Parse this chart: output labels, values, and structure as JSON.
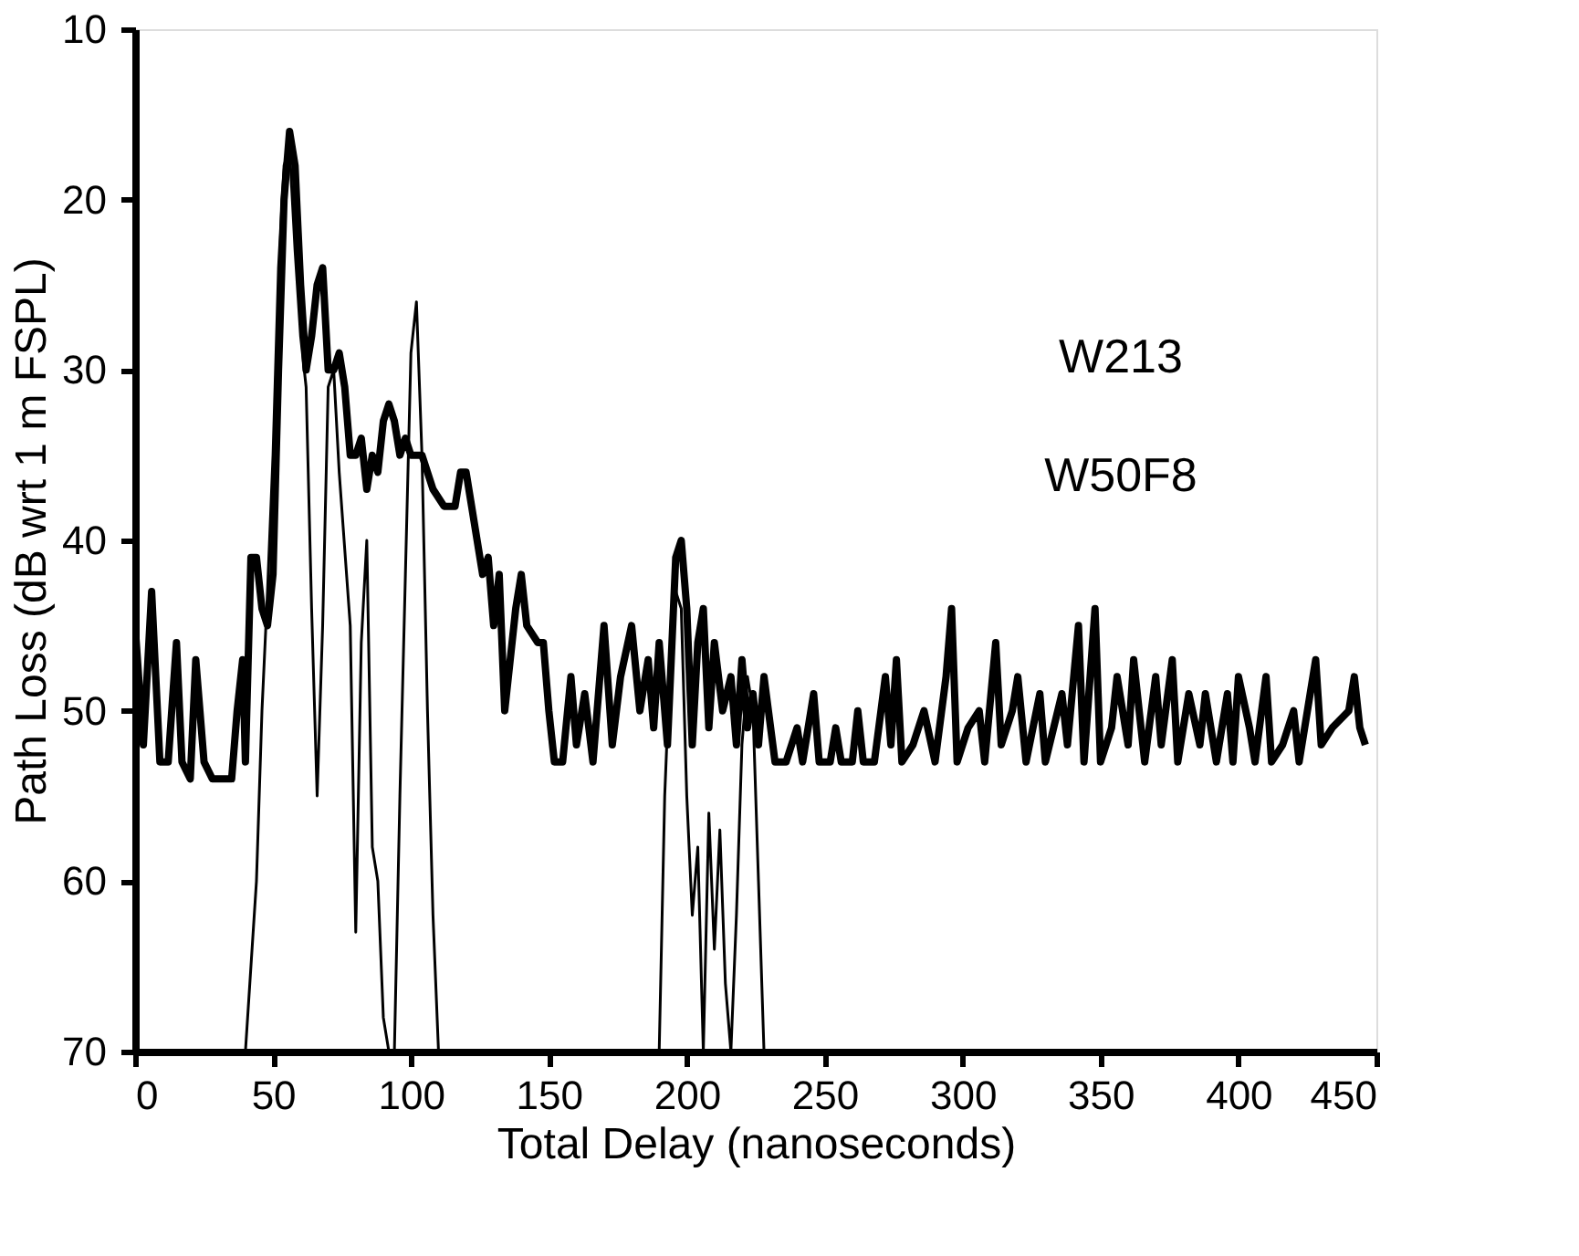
{
  "chart_data": {
    "type": "line",
    "xlabel": "Total Delay (nanoseconds)",
    "ylabel": "Path Loss (dB wrt 1 m FSPL)",
    "xlim": [
      0,
      450
    ],
    "xticks": [
      0,
      50,
      100,
      150,
      200,
      250,
      300,
      350,
      400,
      450
    ],
    "ylim": [
      70,
      10
    ],
    "yticks": [
      10,
      20,
      30,
      40,
      50,
      60,
      70
    ],
    "grid": false,
    "legend": false,
    "marker": "none",
    "line_style": "solid",
    "annotations": [
      "W213",
      "W50F8"
    ],
    "series": [
      {
        "color": "#000000",
        "x": [
          0,
          3,
          6,
          9,
          12,
          15,
          17,
          20,
          22,
          25,
          28,
          32,
          35,
          37,
          39,
          40,
          42,
          44,
          46,
          48,
          50,
          52,
          54,
          56,
          58,
          60,
          62,
          64,
          66,
          68,
          70,
          72,
          74,
          76,
          78,
          80,
          82,
          84,
          86,
          88,
          90,
          92,
          94,
          96,
          98,
          100,
          104,
          108,
          112,
          116,
          118,
          120,
          122,
          126,
          128,
          130,
          132,
          134,
          136,
          138,
          140,
          142,
          146,
          148,
          150,
          152,
          155,
          158,
          160,
          163,
          166,
          170,
          173,
          176,
          180,
          183,
          186,
          188,
          190,
          193,
          196,
          198,
          200,
          202,
          204,
          206,
          208,
          210,
          213,
          216,
          218,
          220,
          222,
          224,
          226,
          228,
          232,
          236,
          240,
          242,
          246,
          248,
          252,
          254,
          256,
          260,
          262,
          264,
          268,
          272,
          274,
          276,
          278,
          282,
          286,
          290,
          294,
          296,
          298,
          302,
          306,
          308,
          312,
          314,
          318,
          320,
          323,
          328,
          330,
          336,
          338,
          342,
          344,
          348,
          350,
          354,
          356,
          360,
          362,
          366,
          370,
          372,
          376,
          378,
          382,
          386,
          388,
          392,
          396,
          398,
          400,
          404,
          406,
          410,
          412,
          416,
          420,
          422,
          426,
          428,
          430,
          434,
          440,
          442,
          444,
          446
        ],
        "values": [
          45,
          52,
          43,
          53,
          53,
          46,
          53,
          54,
          47,
          53,
          54,
          54,
          54,
          50,
          47,
          53,
          41,
          41,
          44,
          45,
          42,
          30,
          20,
          16,
          18,
          25,
          30,
          28,
          25,
          24,
          30,
          30,
          29,
          31,
          35,
          35,
          34,
          37,
          35,
          36,
          33,
          32,
          33,
          35,
          34,
          35,
          35,
          37,
          38,
          38,
          36,
          36,
          38,
          42,
          41,
          45,
          42,
          50,
          47,
          44,
          42,
          45,
          46,
          46,
          50,
          53,
          53,
          48,
          52,
          49,
          53,
          45,
          52,
          48,
          45,
          50,
          47,
          51,
          46,
          52,
          41,
          40,
          44,
          52,
          46,
          44,
          51,
          46,
          50,
          48,
          52,
          47,
          51,
          49,
          52,
          48,
          53,
          53,
          51,
          53,
          49,
          53,
          53,
          51,
          53,
          53,
          50,
          53,
          53,
          48,
          52,
          47,
          53,
          52,
          50,
          53,
          48,
          44,
          53,
          51,
          50,
          53,
          46,
          52,
          50,
          48,
          53,
          49,
          53,
          49,
          52,
          45,
          53,
          44,
          53,
          51,
          48,
          52,
          47,
          53,
          48,
          52,
          47,
          53,
          49,
          52,
          49,
          53,
          49,
          53,
          48,
          51,
          53,
          48,
          53,
          52,
          50,
          53,
          49,
          47,
          52,
          51,
          50,
          48,
          51,
          52
        ]
      },
      {
        "color": "#000000",
        "x": [
          40,
          44,
          46,
          48,
          50,
          52,
          54,
          56,
          58,
          60,
          62,
          64,
          66,
          68,
          70,
          72,
          74,
          78,
          80,
          82,
          84,
          86,
          88,
          90,
          92,
          93,
          94,
          96,
          98,
          100,
          102,
          104,
          106,
          108,
          110,
          150,
          190,
          192,
          194,
          196,
          198,
          200,
          202,
          204,
          206,
          208,
          210,
          212,
          214,
          216,
          218,
          220,
          222,
          224,
          226,
          228
        ],
        "values": [
          70,
          60,
          50,
          43,
          35,
          24,
          18,
          17,
          23,
          28,
          31,
          44,
          55,
          45,
          31,
          30,
          36,
          45,
          63,
          46,
          40,
          58,
          60,
          68,
          70,
          null,
          70,
          55,
          42,
          29,
          26,
          35,
          50,
          62,
          70,
          null,
          70,
          55,
          47,
          43,
          44,
          55,
          62,
          58,
          70,
          56,
          64,
          57,
          66,
          70,
          62,
          52,
          48,
          50,
          60,
          70
        ]
      }
    ]
  }
}
